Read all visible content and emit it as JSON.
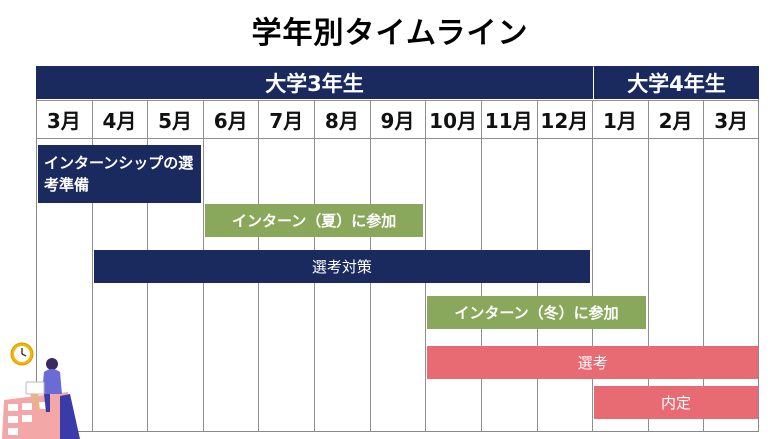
{
  "title": "学年別タイムライン",
  "years": [
    {
      "label": "大学3年生"
    },
    {
      "label": "大学4年生"
    }
  ],
  "months": [
    "3月",
    "4月",
    "5月",
    "6月",
    "7月",
    "8月",
    "9月",
    "10月",
    "11月",
    "12月",
    "1月",
    "2月",
    "3月"
  ],
  "bars": [
    {
      "label": "インターンシップの選考準備",
      "color": "navy",
      "start": 0,
      "end": 3
    },
    {
      "label": "インターン（夏）に参加",
      "color": "green",
      "start": 3,
      "end": 7
    },
    {
      "label": "選考対策",
      "color": "navy",
      "start": 1,
      "end": 10
    },
    {
      "label": "インターン（冬）に参加",
      "color": "green",
      "start": 7,
      "end": 11
    },
    {
      "label": "選考",
      "color": "pink",
      "start": 7,
      "end": 13
    },
    {
      "label": "内定",
      "color": "pink",
      "start": 10,
      "end": 13
    }
  ],
  "colors": {
    "navy": "#1b2a5e",
    "green": "#89a85c",
    "pink": "#e86a72"
  },
  "icons": [
    "clock-icon",
    "calendar-icon",
    "person-with-laptop-icon"
  ]
}
